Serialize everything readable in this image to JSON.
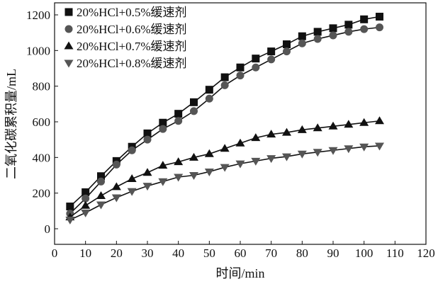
{
  "chart_data": {
    "type": "line",
    "title": "",
    "xlabel": "时间/min",
    "ylabel": "二氧化碳累积量/mL",
    "xlim": [
      0,
      120
    ],
    "ylim": [
      0,
      1200
    ],
    "xticks": [
      "0",
      "10",
      "20",
      "30",
      "40",
      "50",
      "60",
      "70",
      "80",
      "90",
      "100",
      "110",
      "120"
    ],
    "yticks": [
      "0",
      "200",
      "400",
      "600",
      "800",
      "1000",
      "1200"
    ],
    "legend_position": "top-left",
    "x": [
      5,
      10,
      15,
      20,
      25,
      30,
      35,
      40,
      45,
      50,
      55,
      60,
      65,
      70,
      75,
      80,
      85,
      90,
      95,
      100,
      105
    ],
    "series": [
      {
        "name": "20%HCl+0.5%缓速剂",
        "marker": "square",
        "color": "#111111",
        "values": [
          125,
          205,
          295,
          380,
          460,
          535,
          595,
          645,
          710,
          780,
          850,
          905,
          955,
          995,
          1035,
          1080,
          1105,
          1125,
          1145,
          1175,
          1190
        ]
      },
      {
        "name": "20%HCl+0.6%缓速剂",
        "marker": "circle",
        "color": "#555555",
        "values": [
          85,
          170,
          265,
          360,
          440,
          500,
          560,
          605,
          660,
          730,
          805,
          860,
          905,
          950,
          995,
          1040,
          1065,
          1085,
          1105,
          1120,
          1130
        ]
      },
      {
        "name": "20%HCl+0.7%缓速剂",
        "marker": "triangle-up",
        "color": "#111111",
        "values": [
          65,
          130,
          185,
          235,
          280,
          315,
          355,
          375,
          400,
          420,
          450,
          480,
          510,
          530,
          540,
          555,
          565,
          575,
          585,
          595,
          605
        ]
      },
      {
        "name": "20%HCl+0.8%缓速剂",
        "marker": "triangle-down",
        "color": "#555555",
        "values": [
          50,
          90,
          135,
          175,
          210,
          240,
          265,
          290,
          300,
          320,
          345,
          365,
          380,
          395,
          405,
          420,
          430,
          440,
          450,
          460,
          465
        ]
      }
    ]
  }
}
